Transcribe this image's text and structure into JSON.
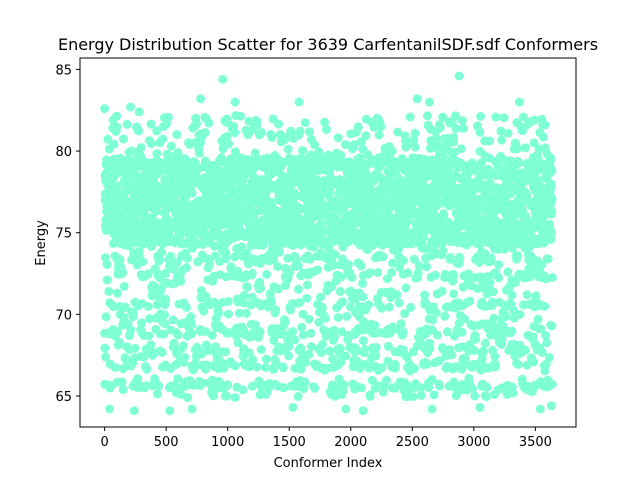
{
  "chart_data": {
    "type": "scatter",
    "title": "Energy Distribution Scatter for 3639 CarfentanilSDF.sdf Conformers",
    "xlabel": "Conformer Index",
    "ylabel": "Energy",
    "xlim": [
      -200,
      3830
    ],
    "ylim": [
      63.1,
      85.7
    ],
    "xticks": [
      0,
      500,
      1000,
      1500,
      2000,
      2500,
      3000,
      3500
    ],
    "yticks": [
      65,
      70,
      75,
      80,
      85
    ],
    "grid": false,
    "legend": "none",
    "marker_color": "#7fffd4",
    "n_points": 3639,
    "dense_band": [
      74.3,
      79.6
    ],
    "band_levels": [
      65.6,
      66.8,
      67.8,
      68.8,
      70.6,
      72.4,
      73.5,
      74.4,
      75.4,
      76.9,
      77.6,
      79.3
    ],
    "notable_points": [
      {
        "x": 0,
        "y": 82.6
      },
      {
        "x": 70,
        "y": 81.9
      },
      {
        "x": 210,
        "y": 82.7
      },
      {
        "x": 280,
        "y": 82.4
      },
      {
        "x": 780,
        "y": 83.2
      },
      {
        "x": 960,
        "y": 84.4
      },
      {
        "x": 1060,
        "y": 83.0
      },
      {
        "x": 1580,
        "y": 83.0
      },
      {
        "x": 2540,
        "y": 83.2
      },
      {
        "x": 2640,
        "y": 83.0
      },
      {
        "x": 2880,
        "y": 84.6
      },
      {
        "x": 3370,
        "y": 83.0
      },
      {
        "x": 40,
        "y": 64.2
      },
      {
        "x": 240,
        "y": 64.1
      },
      {
        "x": 530,
        "y": 64.1
      },
      {
        "x": 710,
        "y": 64.2
      },
      {
        "x": 1530,
        "y": 64.3
      },
      {
        "x": 1960,
        "y": 64.2
      },
      {
        "x": 2100,
        "y": 64.1
      },
      {
        "x": 2660,
        "y": 64.2
      },
      {
        "x": 3050,
        "y": 64.3
      },
      {
        "x": 3540,
        "y": 64.2
      },
      {
        "x": 3630,
        "y": 64.4
      }
    ]
  }
}
